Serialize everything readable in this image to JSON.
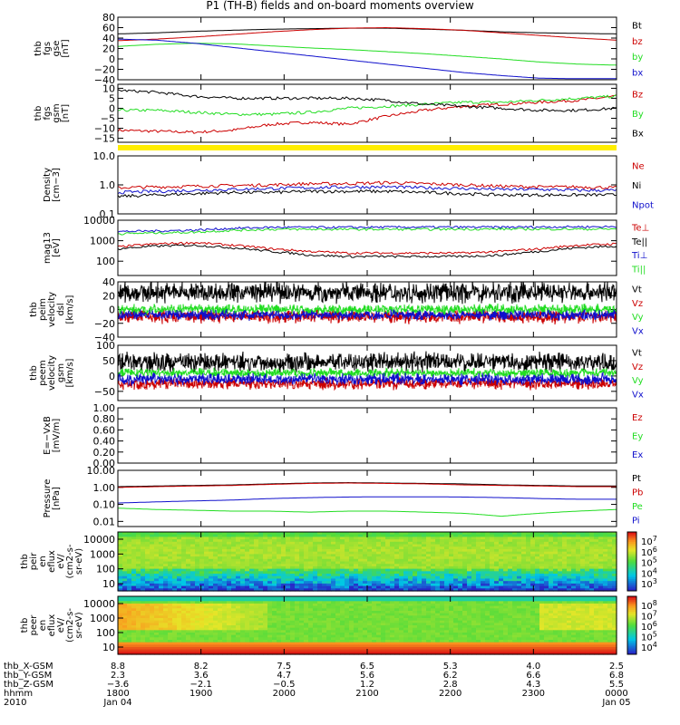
{
  "title": "P1 (TH-B) fields and on-board moments overview",
  "colors": {
    "black": "#000000",
    "red": "#cc0000",
    "green": "#22dd22",
    "blue": "#1010cc",
    "yellow": "#ffee00"
  },
  "chart_data": [
    {
      "type": "line",
      "id": "fgs",
      "ylabel": [
        "thb",
        "fgs",
        "gse",
        "[nT]"
      ],
      "ylim": [
        -40,
        80
      ],
      "ticks": [
        "80",
        "60",
        "40",
        "20",
        "0",
        "−20",
        "−40"
      ],
      "series": [
        {
          "name": "Bt",
          "color": "black",
          "values": [
            48,
            50,
            53,
            55,
            57,
            58,
            59,
            59,
            57,
            55,
            52,
            50,
            49,
            48
          ]
        },
        {
          "name": "bz",
          "color": "red",
          "values": [
            35,
            38,
            42,
            47,
            52,
            56,
            59,
            60,
            58,
            55,
            50,
            45,
            40,
            36
          ]
        },
        {
          "name": "by",
          "color": "green",
          "values": [
            24,
            28,
            30,
            29,
            25,
            21,
            18,
            14,
            10,
            5,
            0,
            -6,
            -10,
            -12
          ]
        },
        {
          "name": "bx",
          "color": "blue",
          "values": [
            38,
            36,
            30,
            22,
            14,
            6,
            -2,
            -10,
            -18,
            -26,
            -32,
            -37,
            -38,
            -38
          ]
        }
      ]
    },
    {
      "type": "line",
      "id": "fgs-gsm",
      "ylabel": [
        "thb",
        "fgs",
        "gsm",
        "[nT]"
      ],
      "ylim": [
        -17,
        12
      ],
      "ticks": [
        "10",
        "5",
        "0",
        "−5",
        "−10",
        "−15"
      ],
      "series": [
        {
          "name": "Bz",
          "color": "red",
          "values": [
            -11,
            -11.5,
            -12,
            -11,
            -8,
            -7,
            -8,
            -4,
            -1,
            1,
            2,
            3,
            4,
            6
          ]
        },
        {
          "name": "By",
          "color": "green",
          "values": [
            -1,
            -1,
            -2,
            -3,
            -3,
            -2,
            0,
            1,
            2,
            3,
            3,
            4,
            5,
            6
          ]
        },
        {
          "name": "Bx",
          "color": "black",
          "values": [
            9,
            8,
            6,
            5,
            5,
            5,
            5,
            4,
            2,
            1,
            0,
            -1,
            -1,
            0
          ]
        }
      ]
    },
    {
      "type": "line",
      "id": "density",
      "ylabel": [
        "Density",
        "[cm−3]"
      ],
      "ylim": [
        0.1,
        10
      ],
      "scale": "log",
      "ticks": [
        "10.0",
        "1.0",
        "0.1"
      ],
      "series": [
        {
          "name": "Ne",
          "color": "red",
          "values": [
            0.8,
            0.85,
            0.9,
            0.95,
            1.0,
            1.1,
            1.1,
            1.2,
            1.1,
            1.0,
            0.9,
            0.85,
            0.85,
            0.8
          ]
        },
        {
          "name": "Ni",
          "color": "black",
          "values": [
            0.4,
            0.45,
            0.5,
            0.55,
            0.55,
            0.6,
            0.6,
            0.6,
            0.55,
            0.5,
            0.45,
            0.45,
            0.45,
            0.45
          ]
        },
        {
          "name": "Npot",
          "color": "blue",
          "values": [
            0.55,
            0.6,
            0.65,
            0.7,
            0.75,
            0.8,
            0.85,
            0.85,
            0.8,
            0.75,
            0.7,
            0.7,
            0.65,
            0.65
          ]
        }
      ]
    },
    {
      "type": "line",
      "id": "temp",
      "ylabel": [
        "mag13",
        "[eV]"
      ],
      "ylim": [
        20,
        10000
      ],
      "scale": "log",
      "ticks": [
        "10000",
        "1000",
        "100"
      ],
      "series": [
        {
          "name": "Te⊥",
          "color": "red",
          "values": [
            500,
            700,
            800,
            600,
            400,
            300,
            250,
            250,
            250,
            250,
            300,
            400,
            600,
            700
          ]
        },
        {
          "name": "Te||",
          "color": "black",
          "values": [
            400,
            550,
            600,
            450,
            300,
            200,
            170,
            170,
            170,
            170,
            200,
            300,
            450,
            550
          ]
        },
        {
          "name": "Ti⊥",
          "color": "blue",
          "values": [
            2800,
            3000,
            3300,
            4000,
            4500,
            4500,
            4500,
            4600,
            4600,
            4600,
            4600,
            4700,
            4800,
            4800
          ]
        },
        {
          "name": "Ti||",
          "color": "green",
          "values": [
            2200,
            2400,
            2600,
            3200,
            3600,
            3600,
            3600,
            3600,
            3600,
            3700,
            3700,
            3700,
            3700,
            3700
          ]
        }
      ]
    },
    {
      "type": "line",
      "id": "peim",
      "ylabel": [
        "thb",
        "peim",
        "velocity",
        "dsl",
        "[km/s]"
      ],
      "ylim": [
        -40,
        40
      ],
      "ticks": [
        "40",
        "20",
        "0",
        "−20",
        "−40"
      ],
      "series": [
        {
          "name": "Vt",
          "color": "black",
          "values": []
        },
        {
          "name": "Vz",
          "color": "red",
          "values": []
        },
        {
          "name": "Vy",
          "color": "green",
          "values": []
        },
        {
          "name": "Vx",
          "color": "blue",
          "values": []
        }
      ]
    },
    {
      "type": "line",
      "id": "peem",
      "ylabel": [
        "thb",
        "peem",
        "velocity",
        "gsm",
        "[km/s]"
      ],
      "ylim": [
        -80,
        100
      ],
      "ticks": [
        "100",
        "50",
        "0",
        "−50"
      ],
      "series": [
        {
          "name": "Vt",
          "color": "black",
          "values": []
        },
        {
          "name": "Vz",
          "color": "red",
          "values": []
        },
        {
          "name": "Vy",
          "color": "green",
          "values": []
        },
        {
          "name": "Vx",
          "color": "blue",
          "values": []
        }
      ]
    },
    {
      "type": "line",
      "id": "efield",
      "ylabel": [
        "E=−VxB",
        "[mV/m]"
      ],
      "ylim": [
        0,
        1
      ],
      "ticks": [
        "1.00",
        "0.80",
        "0.60",
        "0.40",
        "0.20",
        "0.00"
      ],
      "series": [
        {
          "name": "Ez",
          "color": "red",
          "values": []
        },
        {
          "name": "Ey",
          "color": "green",
          "values": []
        },
        {
          "name": "Ex",
          "color": "blue",
          "values": []
        }
      ]
    },
    {
      "type": "line",
      "id": "pressure",
      "ylabel": [
        "Pressure",
        "[nPa]"
      ],
      "ylim": [
        0.005,
        10
      ],
      "scale": "log",
      "ticks": [
        "10.00",
        "1.00",
        "0.10",
        "0.01"
      ],
      "series": [
        {
          "name": "Pt",
          "color": "black",
          "values": [
            1.1,
            1.2,
            1.3,
            1.4,
            1.6,
            1.8,
            1.9,
            1.8,
            1.7,
            1.6,
            1.4,
            1.3,
            1.2,
            1.2
          ]
        },
        {
          "name": "Pb",
          "color": "red",
          "values": [
            1.0,
            1.1,
            1.2,
            1.3,
            1.5,
            1.7,
            1.8,
            1.7,
            1.6,
            1.4,
            1.3,
            1.2,
            1.1,
            1.1
          ]
        },
        {
          "name": "Pe",
          "color": "green",
          "values": [
            0.06,
            0.05,
            0.045,
            0.04,
            0.04,
            0.035,
            0.04,
            0.04,
            0.035,
            0.03,
            0.02,
            0.03,
            0.04,
            0.05
          ]
        },
        {
          "name": "Pi",
          "color": "blue",
          "values": [
            0.12,
            0.14,
            0.16,
            0.18,
            0.22,
            0.25,
            0.27,
            0.28,
            0.28,
            0.27,
            0.25,
            0.22,
            0.2,
            0.2
          ]
        }
      ]
    },
    {
      "type": "heatmap",
      "id": "peir",
      "ylabel": [
        "thb",
        "peir",
        "en",
        "eflux",
        "eV/",
        "(cm2-s-",
        "sr-eV)"
      ],
      "ticks": [
        "10000",
        "1000",
        "100",
        "10"
      ],
      "cbar_ticks": [
        "10^7",
        "10^6",
        "10^5",
        "10^4",
        "10^3"
      ]
    },
    {
      "type": "heatmap",
      "id": "peer",
      "ylabel": [
        "thb",
        "peer",
        "en",
        "eflux",
        "eV/",
        "(cm2-s-",
        "sr-eV)"
      ],
      "ticks": [
        "10000",
        "1000",
        "100",
        "10"
      ],
      "cbar_ticks": [
        "10^8",
        "10^7",
        "10^6",
        "10^5",
        "10^4"
      ]
    }
  ],
  "xaxis": {
    "rows": [
      {
        "label": "thb_X-GSM",
        "values": [
          "8.8",
          "8.2",
          "7.5",
          "6.5",
          "5.3",
          "4.0",
          "2.5"
        ]
      },
      {
        "label": "thb_Y-GSM",
        "values": [
          "2.3",
          "3.6",
          "4.7",
          "5.6",
          "6.2",
          "6.6",
          "6.8"
        ]
      },
      {
        "label": "thb_Z-GSM",
        "values": [
          "−3.6",
          "−2.1",
          "−0.5",
          "1.2",
          "2.8",
          "4.3",
          "5.5"
        ]
      },
      {
        "label": "hhmm",
        "values": [
          "1800",
          "1900",
          "2000",
          "2100",
          "2200",
          "2300",
          "0000"
        ]
      },
      {
        "label": "2010",
        "values": [
          "Jan 04",
          "",
          "",
          "",
          "",
          "",
          "Jan 05"
        ]
      }
    ]
  }
}
